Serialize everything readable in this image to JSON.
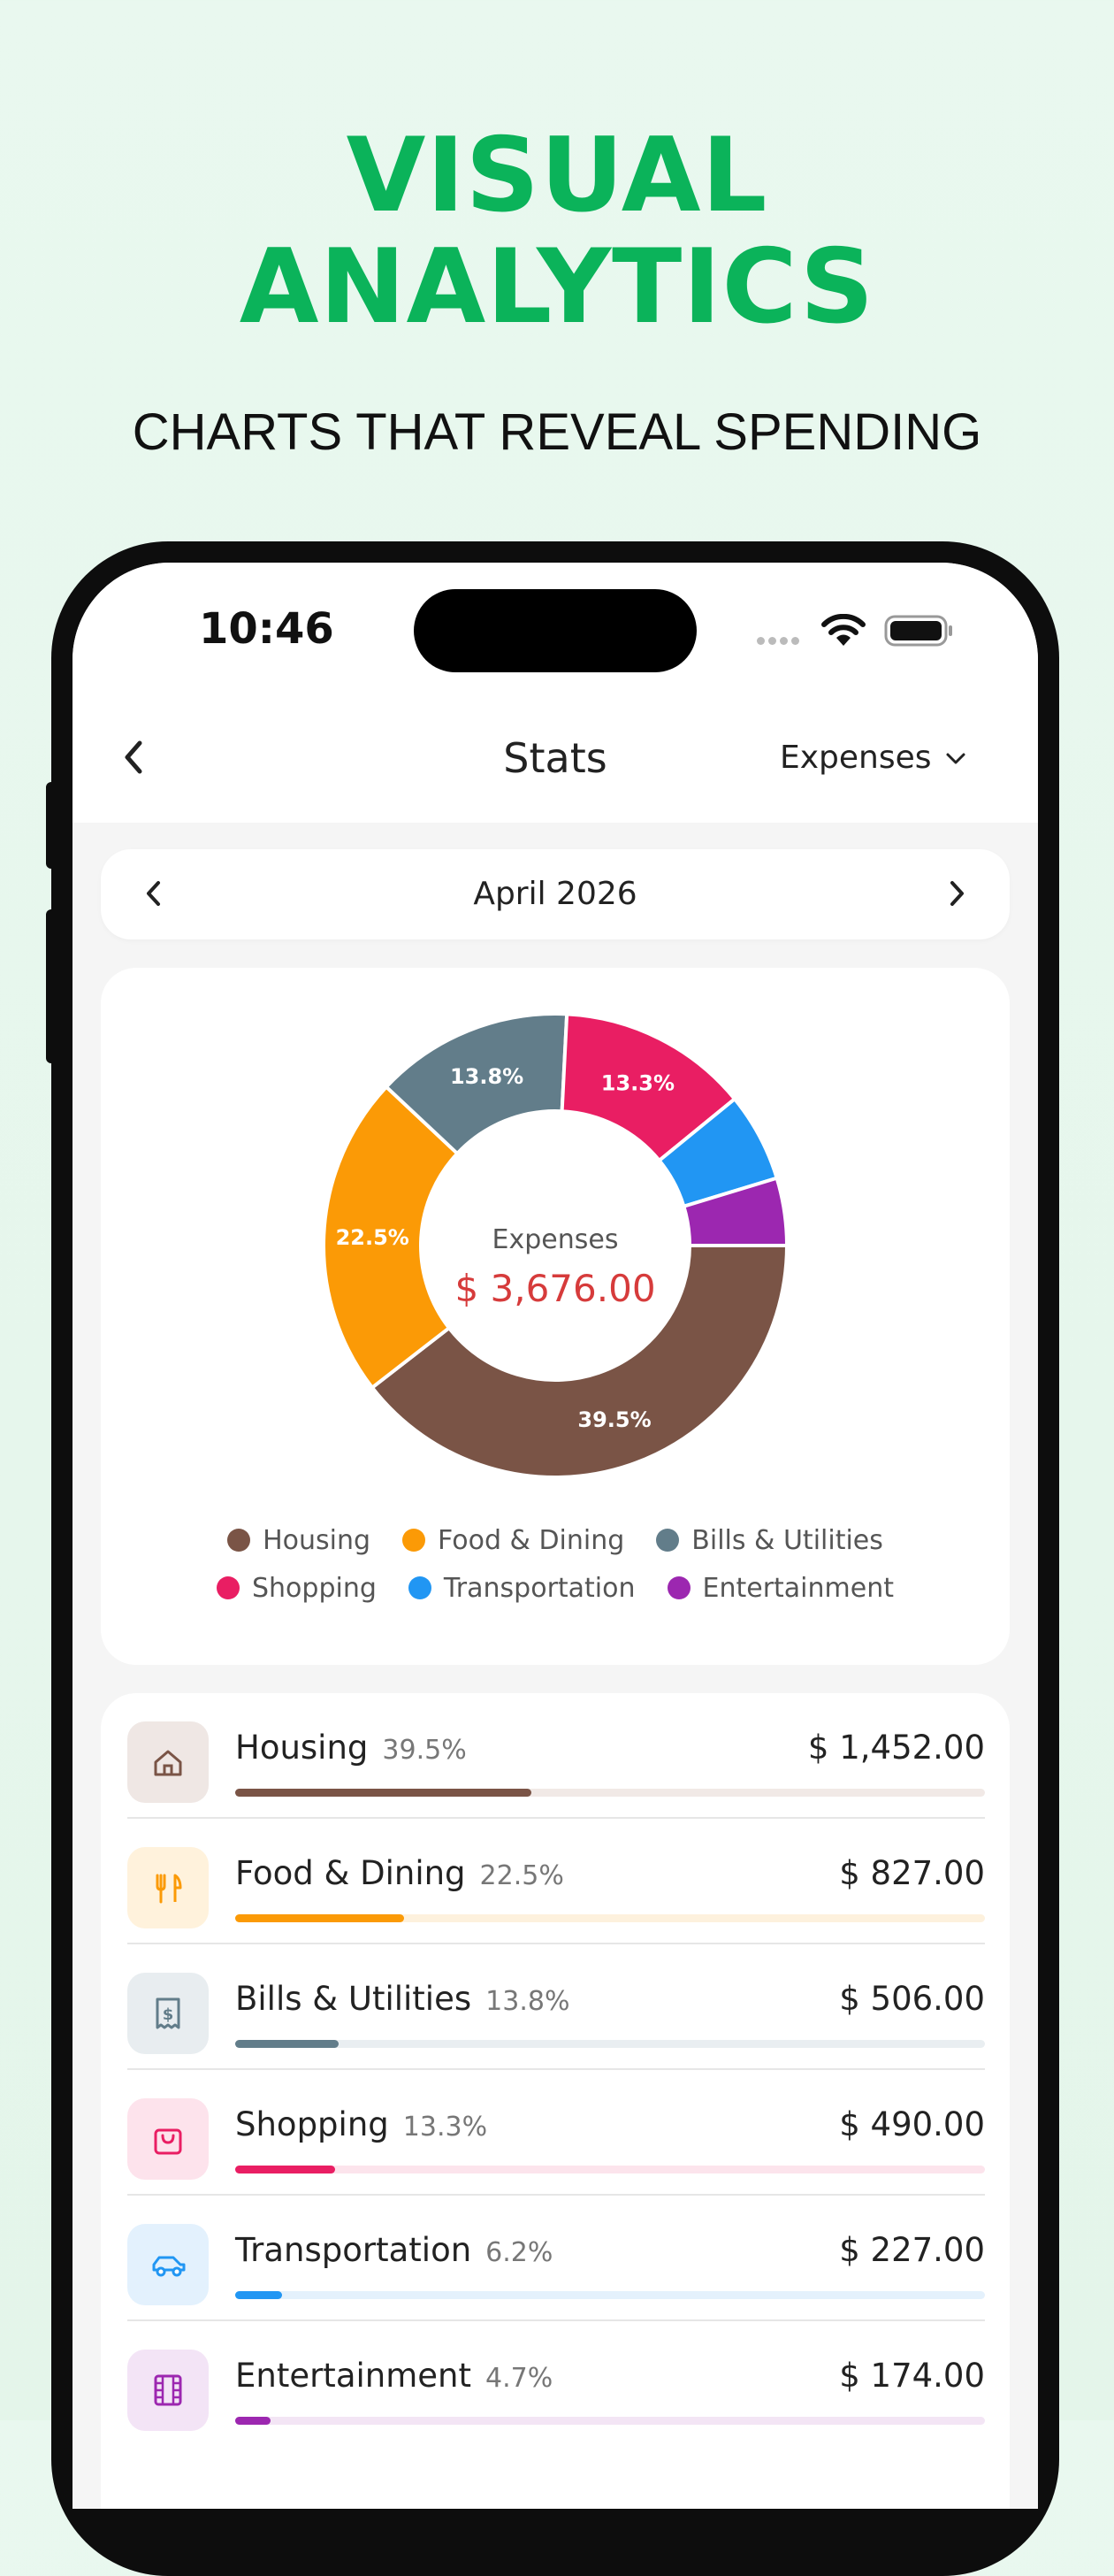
{
  "promo": {
    "headline_line1": "VISUAL",
    "headline_line2": "ANALYTICS",
    "subheadline": "CHARTS THAT REVEAL SPENDING"
  },
  "status_bar": {
    "time": "10:46"
  },
  "header": {
    "title": "Stats",
    "type_selector": "Expenses"
  },
  "month_selector": {
    "label": "April 2026"
  },
  "chart_data": {
    "type": "pie",
    "categories": [
      "Housing",
      "Food & Dining",
      "Bills & Utilities",
      "Shopping",
      "Transportation",
      "Entertainment"
    ],
    "values": [
      39.5,
      22.5,
      13.8,
      13.3,
      6.2,
      4.7
    ],
    "slice_labels": [
      "39.5%",
      "22.5%",
      "13.8%",
      "13.3%",
      "",
      ""
    ],
    "colors": [
      "#7a5446",
      "#fb9a06",
      "#627d8a",
      "#e91e63",
      "#2196f3",
      "#9c27b0"
    ],
    "center_label": "Expenses",
    "center_value": "$ 3,676.00",
    "legend_position": "bottom"
  },
  "legend": [
    {
      "label": "Housing",
      "color": "#7a5446"
    },
    {
      "label": "Food & Dining",
      "color": "#fb9a06"
    },
    {
      "label": "Bills & Utilities",
      "color": "#627d8a"
    },
    {
      "label": "Shopping",
      "color": "#e91e63"
    },
    {
      "label": "Transportation",
      "color": "#2196f3"
    },
    {
      "label": "Entertainment",
      "color": "#9c27b0"
    }
  ],
  "categories": [
    {
      "name": "Housing",
      "percent": "39.5%",
      "amount": "$ 1,452.00",
      "fraction": 0.395,
      "color": "#7a5446",
      "bg": "#efe7e4",
      "track": "#f1e9e6",
      "icon": "house-icon"
    },
    {
      "name": "Food & Dining",
      "percent": "22.5%",
      "amount": "$ 827.00",
      "fraction": 0.225,
      "color": "#fb9a06",
      "bg": "#fff2dc",
      "track": "#fdf1dd",
      "icon": "utensils-icon"
    },
    {
      "name": "Bills & Utilities",
      "percent": "13.8%",
      "amount": "$ 506.00",
      "fraction": 0.138,
      "color": "#627d8a",
      "bg": "#e8edf0",
      "track": "#e9eef1",
      "icon": "receipt-icon"
    },
    {
      "name": "Shopping",
      "percent": "13.3%",
      "amount": "$ 490.00",
      "fraction": 0.133,
      "color": "#e91e63",
      "bg": "#fde3ec",
      "track": "#fce4ec",
      "icon": "shopping-bag-icon"
    },
    {
      "name": "Transportation",
      "percent": "6.2%",
      "amount": "$ 227.00",
      "fraction": 0.062,
      "color": "#2196f3",
      "bg": "#e3f1fd",
      "track": "#e4f1fc",
      "icon": "car-icon"
    },
    {
      "name": "Entertainment",
      "percent": "4.7%",
      "amount": "$ 174.00",
      "fraction": 0.047,
      "color": "#9c27b0",
      "bg": "#f3e4f6",
      "track": "#f3e5f5",
      "icon": "film-icon"
    }
  ]
}
